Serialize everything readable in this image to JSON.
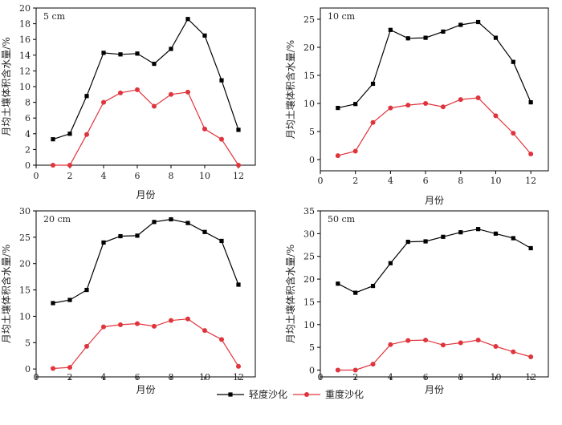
{
  "colors": {
    "series_light": "#000000",
    "series_heavy": "#e0343c",
    "axis": "#000000"
  },
  "legend": [
    {
      "name": "轻度沙化",
      "marker": "square",
      "color": "#000000"
    },
    {
      "name": "重度沙化",
      "marker": "circle",
      "color": "#e0343c"
    }
  ],
  "chart_data": [
    {
      "type": "line",
      "panel_label": "5 cm",
      "xlabel": "月份",
      "ylabel": "月均土壤体积含水量/%",
      "xlim": [
        0,
        13
      ],
      "xticks": [
        0,
        2,
        4,
        6,
        8,
        10,
        12
      ],
      "ylim": [
        0,
        20
      ],
      "yticks": [
        0,
        2,
        4,
        6,
        8,
        10,
        12,
        14,
        16,
        18,
        20
      ],
      "x": [
        1,
        2,
        3,
        4,
        5,
        6,
        7,
        8,
        9,
        10,
        11,
        12
      ],
      "series": [
        {
          "name": "轻度沙化",
          "values": [
            3.3,
            4.0,
            8.8,
            14.3,
            14.1,
            14.2,
            12.9,
            14.8,
            18.6,
            16.5,
            10.8,
            4.5
          ]
        },
        {
          "name": "重度沙化",
          "values": [
            0.0,
            0.0,
            3.9,
            8.0,
            9.2,
            9.6,
            7.5,
            9.0,
            9.3,
            4.6,
            3.3,
            0.0
          ]
        }
      ]
    },
    {
      "type": "line",
      "panel_label": "10 cm",
      "xlabel": "月份",
      "ylabel": "月均土壤体积含水量/%",
      "xlim": [
        0,
        13
      ],
      "xticks": [
        0,
        2,
        4,
        6,
        8,
        10,
        12
      ],
      "ylim": [
        -2,
        27
      ],
      "yticks": [
        0,
        5,
        10,
        15,
        20,
        25
      ],
      "x": [
        1,
        2,
        3,
        4,
        5,
        6,
        7,
        8,
        9,
        10,
        11,
        12
      ],
      "series": [
        {
          "name": "轻度沙化",
          "values": [
            9.2,
            9.9,
            13.5,
            23.1,
            21.6,
            21.7,
            22.8,
            24.0,
            24.5,
            21.7,
            17.4,
            10.2
          ]
        },
        {
          "name": "重度沙化",
          "values": [
            0.7,
            1.5,
            6.6,
            9.2,
            9.7,
            10.0,
            9.4,
            10.7,
            11.0,
            7.8,
            4.7,
            1.0
          ]
        }
      ]
    },
    {
      "type": "line",
      "panel_label": "20 cm",
      "xlabel": "月份",
      "ylabel": "月均土壤体积含水量/%",
      "xlim": [
        0,
        13
      ],
      "xticks": [
        0,
        2,
        4,
        6,
        8,
        10,
        12
      ],
      "ylim": [
        -1.5,
        30
      ],
      "yticks": [
        0,
        5,
        10,
        15,
        20,
        25,
        30
      ],
      "x": [
        1,
        2,
        3,
        4,
        5,
        6,
        7,
        8,
        9,
        10,
        11,
        12
      ],
      "series": [
        {
          "name": "轻度沙化",
          "values": [
            12.5,
            13.1,
            15.0,
            24.0,
            25.2,
            25.3,
            27.9,
            28.4,
            27.7,
            26.0,
            24.3,
            16.0
          ]
        },
        {
          "name": "重度沙化",
          "values": [
            0.1,
            0.3,
            4.3,
            8.0,
            8.4,
            8.6,
            8.1,
            9.2,
            9.5,
            7.3,
            5.6,
            0.5
          ]
        }
      ]
    },
    {
      "type": "line",
      "panel_label": "50 cm",
      "xlabel": "月份",
      "ylabel": "月均土壤体积含水量/%",
      "xlim": [
        0,
        13
      ],
      "xticks": [
        0,
        2,
        4,
        6,
        8,
        10,
        12
      ],
      "ylim": [
        -1.5,
        35
      ],
      "yticks": [
        0,
        5,
        10,
        15,
        20,
        25,
        30,
        35
      ],
      "x": [
        1,
        2,
        3,
        4,
        5,
        6,
        7,
        8,
        9,
        10,
        11,
        12
      ],
      "series": [
        {
          "name": "轻度沙化",
          "values": [
            19.0,
            17.0,
            18.5,
            23.5,
            28.2,
            28.3,
            29.3,
            30.3,
            31.0,
            30.0,
            29.0,
            26.8
          ]
        },
        {
          "name": "重度沙化",
          "values": [
            0.0,
            0.0,
            1.3,
            5.6,
            6.5,
            6.6,
            5.5,
            6.0,
            6.6,
            5.2,
            4.0,
            2.9
          ]
        }
      ]
    }
  ]
}
